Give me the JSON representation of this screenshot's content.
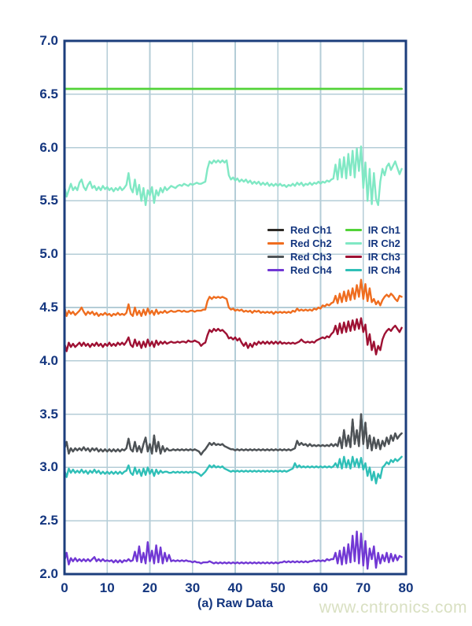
{
  "watermark": {
    "text": "www.cntronics.com",
    "color": "#d9e0c2"
  },
  "chart_data": {
    "type": "line",
    "title": "",
    "xlabel": "(a) Raw Data",
    "ylabel": "",
    "xlim": [
      0,
      80
    ],
    "ylim": [
      2.0,
      7.0
    ],
    "xticks": [
      0,
      10,
      20,
      30,
      40,
      50,
      60,
      70,
      80
    ],
    "yticks": [
      2.0,
      2.5,
      3.0,
      3.5,
      4.0,
      4.5,
      5.0,
      5.5,
      6.0,
      6.5,
      7.0
    ],
    "grid": true,
    "legend_position": "center-right-two-columns",
    "colors": {
      "frame": "#1c3e7c",
      "grid": "#b4cdd7",
      "tick_labels": "#14367f",
      "background": "#ffffff"
    },
    "x_start": 0,
    "x_step": 0.5,
    "legend": {
      "entries": [
        {
          "label": "Red Ch1",
          "color": "#2d2a26"
        },
        {
          "label": "Red Ch2",
          "color": "#ef6d1f"
        },
        {
          "label": "Red Ch3",
          "color": "#4e5357"
        },
        {
          "label": "Red Ch4",
          "color": "#7138d4"
        },
        {
          "label": "IR Ch1",
          "color": "#52d338"
        },
        {
          "label": "IR Ch2",
          "color": "#80e8c4"
        },
        {
          "label": "IR Ch3",
          "color": "#9e1133"
        },
        {
          "label": "IR Ch4",
          "color": "#2fbfb7"
        }
      ]
    },
    "series": [
      {
        "name": "Red Ch1",
        "color": "#2d2a26",
        "width": 2.2,
        "y_ref": "Red Ch3"
      },
      {
        "name": "IR Ch1",
        "color": "#52d338",
        "width": 2.8,
        "x": [
          0,
          79
        ],
        "y": [
          6.55,
          6.55
        ]
      },
      {
        "name": "IR Ch2",
        "color": "#80e8c4",
        "width": 2.4,
        "y": [
          5.63,
          5.54,
          5.6,
          5.66,
          5.6,
          5.63,
          5.6,
          5.67,
          5.7,
          5.63,
          5.6,
          5.65,
          5.68,
          5.62,
          5.64,
          5.6,
          5.63,
          5.6,
          5.64,
          5.61,
          5.63,
          5.6,
          5.62,
          5.59,
          5.62,
          5.6,
          5.63,
          5.6,
          5.62,
          5.65,
          5.76,
          5.62,
          5.58,
          5.7,
          5.56,
          5.65,
          5.5,
          5.62,
          5.46,
          5.6,
          5.55,
          5.63,
          5.48,
          5.6,
          5.55,
          5.62,
          5.58,
          5.63,
          5.6,
          5.62,
          5.64,
          5.63,
          5.62,
          5.64,
          5.65,
          5.64,
          5.66,
          5.65,
          5.64,
          5.66,
          5.65,
          5.66,
          5.67,
          5.66,
          5.66,
          5.67,
          5.68,
          5.8,
          5.87,
          5.85,
          5.88,
          5.86,
          5.88,
          5.86,
          5.88,
          5.86,
          5.88,
          5.74,
          5.7,
          5.72,
          5.69,
          5.71,
          5.68,
          5.7,
          5.68,
          5.7,
          5.67,
          5.69,
          5.66,
          5.68,
          5.66,
          5.68,
          5.65,
          5.67,
          5.65,
          5.67,
          5.64,
          5.66,
          5.64,
          5.66,
          5.64,
          5.66,
          5.64,
          5.65,
          5.63,
          5.65,
          5.64,
          5.66,
          5.64,
          5.67,
          5.65,
          5.67,
          5.64,
          5.66,
          5.65,
          5.67,
          5.65,
          5.67,
          5.66,
          5.68,
          5.66,
          5.68,
          5.67,
          5.69,
          5.68,
          5.7,
          5.71,
          5.84,
          5.7,
          5.89,
          5.72,
          5.91,
          5.71,
          5.94,
          5.74,
          5.97,
          5.72,
          5.99,
          5.78,
          6.01,
          5.62,
          5.86,
          5.5,
          5.8,
          5.47,
          5.76,
          5.52,
          5.46,
          5.68,
          5.8,
          5.74,
          5.82,
          5.85,
          5.79,
          5.83,
          5.87,
          5.81,
          5.75,
          5.8
        ]
      },
      {
        "name": "Red Ch2",
        "color": "#ef6d1f",
        "width": 2.4,
        "y": [
          4.5,
          4.42,
          4.47,
          4.44,
          4.46,
          4.43,
          4.45,
          4.47,
          4.5,
          4.46,
          4.43,
          4.46,
          4.44,
          4.46,
          4.43,
          4.45,
          4.42,
          4.44,
          4.43,
          4.45,
          4.43,
          4.44,
          4.42,
          4.44,
          4.43,
          4.45,
          4.43,
          4.44,
          4.43,
          4.45,
          4.53,
          4.44,
          4.42,
          4.5,
          4.43,
          4.47,
          4.42,
          4.48,
          4.43,
          4.49,
          4.44,
          4.47,
          4.43,
          4.48,
          4.44,
          4.46,
          4.45,
          4.47,
          4.45,
          4.46,
          4.47,
          4.46,
          4.46,
          4.47,
          4.47,
          4.46,
          4.47,
          4.46,
          4.46,
          4.47,
          4.47,
          4.46,
          4.47,
          4.47,
          4.47,
          4.48,
          4.48,
          4.56,
          4.6,
          4.58,
          4.6,
          4.59,
          4.6,
          4.59,
          4.6,
          4.59,
          4.58,
          4.5,
          4.48,
          4.49,
          4.47,
          4.48,
          4.47,
          4.48,
          4.46,
          4.47,
          4.46,
          4.47,
          4.45,
          4.47,
          4.46,
          4.47,
          4.45,
          4.46,
          4.45,
          4.46,
          4.45,
          4.46,
          4.44,
          4.46,
          4.45,
          4.46,
          4.45,
          4.46,
          4.45,
          4.46,
          4.45,
          4.47,
          4.46,
          4.49,
          4.47,
          4.48,
          4.47,
          4.48,
          4.47,
          4.48,
          4.47,
          4.49,
          4.48,
          4.5,
          4.49,
          4.52,
          4.51,
          4.53,
          4.52,
          4.54,
          4.55,
          4.61,
          4.54,
          4.63,
          4.55,
          4.65,
          4.56,
          4.66,
          4.57,
          4.68,
          4.58,
          4.71,
          4.6,
          4.76,
          4.58,
          4.72,
          4.56,
          4.68,
          4.55,
          4.58,
          4.53,
          4.56,
          4.52,
          4.57,
          4.6,
          4.62,
          4.6,
          4.63,
          4.61,
          4.58,
          4.56,
          4.61,
          4.6
        ]
      },
      {
        "name": "IR Ch3",
        "color": "#9e1133",
        "width": 2.4,
        "y": [
          4.16,
          4.09,
          4.17,
          4.13,
          4.16,
          4.13,
          4.15,
          4.17,
          4.14,
          4.17,
          4.14,
          4.16,
          4.13,
          4.16,
          4.14,
          4.17,
          4.14,
          4.16,
          4.13,
          4.16,
          4.14,
          4.17,
          4.14,
          4.16,
          4.14,
          4.17,
          4.15,
          4.17,
          4.15,
          4.18,
          4.22,
          4.15,
          4.13,
          4.2,
          4.14,
          4.18,
          4.12,
          4.18,
          4.13,
          4.2,
          4.14,
          4.18,
          4.13,
          4.19,
          4.15,
          4.18,
          4.16,
          4.18,
          4.16,
          4.17,
          4.18,
          4.17,
          4.17,
          4.18,
          4.17,
          4.18,
          4.18,
          4.17,
          4.19,
          4.18,
          4.18,
          4.19,
          4.18,
          4.17,
          4.14,
          4.16,
          4.17,
          4.24,
          4.29,
          4.27,
          4.3,
          4.28,
          4.3,
          4.28,
          4.29,
          4.27,
          4.25,
          4.21,
          4.22,
          4.2,
          4.22,
          4.19,
          4.21,
          4.17,
          4.14,
          4.17,
          4.12,
          4.16,
          4.13,
          4.17,
          4.15,
          4.18,
          4.16,
          4.18,
          4.16,
          4.18,
          4.16,
          4.18,
          4.16,
          4.18,
          4.16,
          4.18,
          4.16,
          4.17,
          4.16,
          4.17,
          4.16,
          4.17,
          4.16,
          4.17,
          4.18,
          4.2,
          4.18,
          4.17,
          4.18,
          4.17,
          4.18,
          4.17,
          4.19,
          4.2,
          4.21,
          4.22,
          4.21,
          4.23,
          4.22,
          4.25,
          4.27,
          4.33,
          4.25,
          4.35,
          4.26,
          4.36,
          4.27,
          4.37,
          4.28,
          4.38,
          4.29,
          4.39,
          4.3,
          4.4,
          4.27,
          4.34,
          4.15,
          4.25,
          4.1,
          4.18,
          4.06,
          4.14,
          4.1,
          4.2,
          4.25,
          4.28,
          4.3,
          4.28,
          4.31,
          4.33,
          4.3,
          4.27,
          4.31
        ]
      },
      {
        "name": "Red Ch3",
        "color": "#4e5357",
        "width": 2.4,
        "y": [
          3.18,
          3.24,
          3.13,
          3.18,
          3.15,
          3.18,
          3.16,
          3.18,
          3.16,
          3.19,
          3.16,
          3.18,
          3.15,
          3.18,
          3.16,
          3.18,
          3.15,
          3.17,
          3.15,
          3.17,
          3.15,
          3.17,
          3.15,
          3.17,
          3.15,
          3.17,
          3.15,
          3.17,
          3.16,
          3.18,
          3.27,
          3.17,
          3.15,
          3.24,
          3.15,
          3.2,
          3.14,
          3.22,
          3.28,
          3.15,
          3.22,
          3.13,
          3.3,
          3.15,
          3.24,
          3.13,
          3.2,
          3.15,
          3.18,
          3.16,
          3.16,
          3.17,
          3.16,
          3.17,
          3.16,
          3.17,
          3.16,
          3.17,
          3.16,
          3.17,
          3.16,
          3.17,
          3.16,
          3.15,
          3.12,
          3.15,
          3.17,
          3.2,
          3.23,
          3.21,
          3.23,
          3.21,
          3.22,
          3.21,
          3.22,
          3.2,
          3.19,
          3.18,
          3.17,
          3.17,
          3.16,
          3.17,
          3.16,
          3.17,
          3.16,
          3.17,
          3.16,
          3.17,
          3.16,
          3.17,
          3.16,
          3.17,
          3.16,
          3.17,
          3.16,
          3.17,
          3.16,
          3.17,
          3.16,
          3.17,
          3.16,
          3.17,
          3.16,
          3.17,
          3.16,
          3.17,
          3.16,
          3.17,
          3.18,
          3.25,
          3.21,
          3.23,
          3.21,
          3.22,
          3.2,
          3.22,
          3.2,
          3.21,
          3.2,
          3.21,
          3.2,
          3.21,
          3.2,
          3.21,
          3.2,
          3.22,
          3.2,
          3.22,
          3.2,
          3.28,
          3.18,
          3.35,
          3.2,
          3.3,
          3.19,
          3.45,
          3.22,
          3.35,
          3.2,
          3.5,
          3.22,
          3.42,
          3.18,
          3.3,
          3.16,
          3.28,
          3.18,
          3.26,
          3.17,
          3.25,
          3.2,
          3.28,
          3.22,
          3.3,
          3.25,
          3.32,
          3.27,
          3.3,
          3.32
        ]
      },
      {
        "name": "IR Ch4",
        "color": "#2fbfb7",
        "width": 2.4,
        "y": [
          2.97,
          2.91,
          2.99,
          2.95,
          2.98,
          2.95,
          2.97,
          2.95,
          2.98,
          2.95,
          2.97,
          2.94,
          2.97,
          2.95,
          2.98,
          2.95,
          2.97,
          2.94,
          2.96,
          2.94,
          2.96,
          2.94,
          2.96,
          2.94,
          2.96,
          2.94,
          2.96,
          2.94,
          2.96,
          2.97,
          3.02,
          2.95,
          2.93,
          3.0,
          2.94,
          2.98,
          2.92,
          2.99,
          2.93,
          3.0,
          2.94,
          2.98,
          2.92,
          2.98,
          2.94,
          2.97,
          2.95,
          2.96,
          2.96,
          2.95,
          2.95,
          2.96,
          2.95,
          2.96,
          2.95,
          2.96,
          2.95,
          2.96,
          2.95,
          2.96,
          2.95,
          2.96,
          2.95,
          2.94,
          2.92,
          2.94,
          2.96,
          2.99,
          3.02,
          3.0,
          3.02,
          3.0,
          3.01,
          3.0,
          3.01,
          2.99,
          2.98,
          2.97,
          2.96,
          2.97,
          2.96,
          2.97,
          2.96,
          2.97,
          2.96,
          2.97,
          2.96,
          2.97,
          2.96,
          2.97,
          2.96,
          2.97,
          2.96,
          2.97,
          2.96,
          2.97,
          2.96,
          2.97,
          2.96,
          2.97,
          2.96,
          2.97,
          2.96,
          2.97,
          2.96,
          2.97,
          2.98,
          2.99,
          3.04,
          3.0,
          3.02,
          3.0,
          3.01,
          3.0,
          3.01,
          3.0,
          3.01,
          3.0,
          3.01,
          3.0,
          3.01,
          3.0,
          3.01,
          3.0,
          3.01,
          3.0,
          3.01,
          3.04,
          3.0,
          3.08,
          2.99,
          3.1,
          3.0,
          3.07,
          2.99,
          3.1,
          3.01,
          3.08,
          3.0,
          3.09,
          2.98,
          3.04,
          2.92,
          3.0,
          2.88,
          2.96,
          2.85,
          2.94,
          2.9,
          3.0,
          3.02,
          3.05,
          3.03,
          3.07,
          3.05,
          3.08,
          3.06,
          3.08,
          3.1
        ]
      },
      {
        "name": "Red Ch4",
        "color": "#7138d4",
        "width": 2.4,
        "y": [
          2.13,
          2.2,
          2.09,
          2.15,
          2.12,
          2.15,
          2.12,
          2.14,
          2.12,
          2.14,
          2.12,
          2.14,
          2.12,
          2.14,
          2.16,
          2.12,
          2.14,
          2.12,
          2.14,
          2.12,
          2.13,
          2.12,
          2.13,
          2.11,
          2.13,
          2.11,
          2.13,
          2.11,
          2.13,
          2.12,
          2.14,
          2.12,
          2.13,
          2.21,
          2.12,
          2.26,
          2.11,
          2.2,
          2.1,
          2.3,
          2.12,
          2.22,
          2.1,
          2.27,
          2.11,
          2.25,
          2.1,
          2.2,
          2.12,
          2.18,
          2.12,
          2.13,
          2.12,
          2.13,
          2.12,
          2.13,
          2.12,
          2.13,
          2.12,
          2.12,
          2.11,
          2.12,
          2.11,
          2.11,
          2.1,
          2.11,
          2.11,
          2.11,
          2.12,
          2.11,
          2.1,
          2.11,
          2.1,
          2.11,
          2.1,
          2.11,
          2.1,
          2.11,
          2.1,
          2.11,
          2.1,
          2.11,
          2.1,
          2.11,
          2.1,
          2.11,
          2.1,
          2.11,
          2.1,
          2.11,
          2.1,
          2.11,
          2.1,
          2.11,
          2.1,
          2.11,
          2.1,
          2.11,
          2.1,
          2.11,
          2.1,
          2.11,
          2.11,
          2.12,
          2.11,
          2.12,
          2.11,
          2.12,
          2.11,
          2.12,
          2.11,
          2.12,
          2.11,
          2.12,
          2.11,
          2.12,
          2.12,
          2.13,
          2.12,
          2.13,
          2.12,
          2.13,
          2.12,
          2.14,
          2.13,
          2.14,
          2.14,
          2.2,
          2.1,
          2.22,
          2.09,
          2.25,
          2.1,
          2.28,
          2.11,
          2.36,
          2.12,
          2.4,
          2.1,
          2.38,
          2.08,
          2.31,
          2.05,
          2.24,
          2.14,
          2.26,
          2.06,
          2.2,
          2.1,
          2.18,
          2.12,
          2.2,
          2.11,
          2.19,
          2.12,
          2.18,
          2.13,
          2.17,
          2.16
        ]
      }
    ]
  }
}
